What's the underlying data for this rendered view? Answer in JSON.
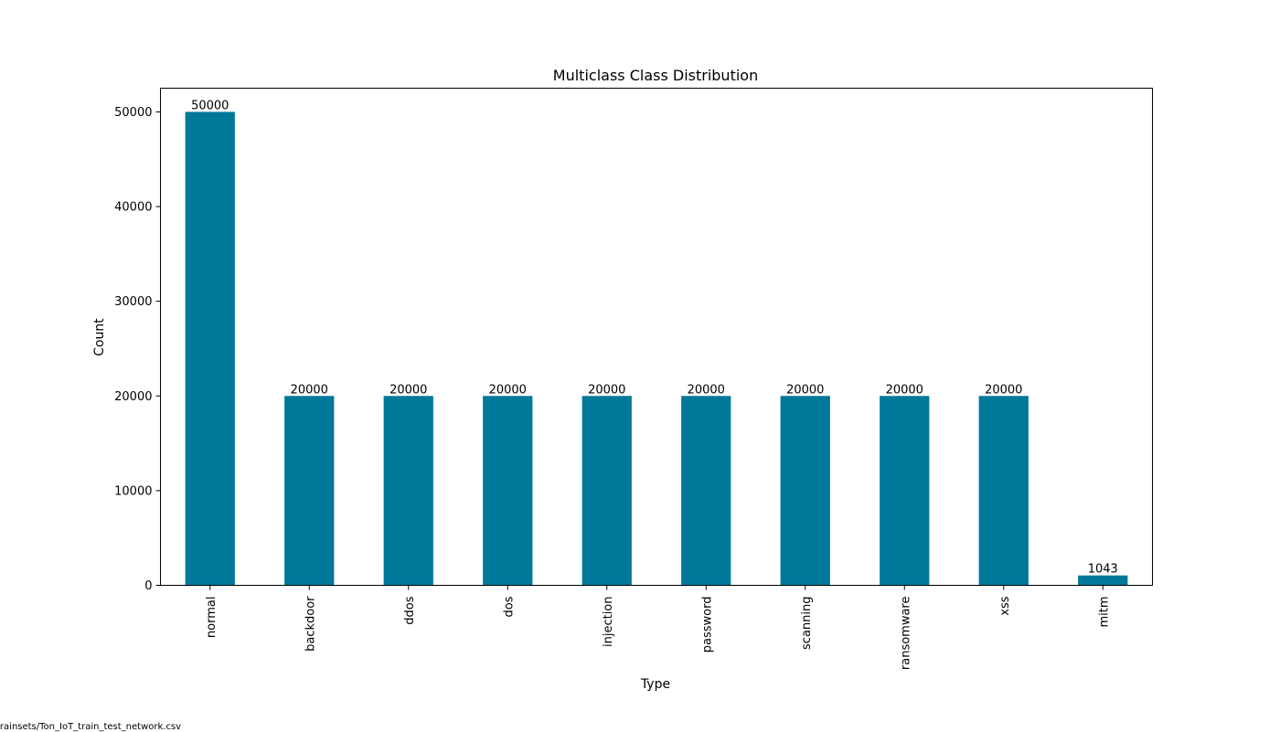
{
  "chart_data": {
    "type": "bar",
    "title": "Multiclass Class Distribution",
    "xlabel": "Type",
    "ylabel": "Count",
    "categories": [
      "normal",
      "backdoor",
      "ddos",
      "dos",
      "injection",
      "password",
      "scanning",
      "ransomware",
      "xss",
      "mitm"
    ],
    "values": [
      50000,
      20000,
      20000,
      20000,
      20000,
      20000,
      20000,
      20000,
      20000,
      1043
    ],
    "data_labels": [
      "50000",
      "20000",
      "20000",
      "20000",
      "20000",
      "20000",
      "20000",
      "20000",
      "20000",
      "1043"
    ],
    "ylim": [
      0,
      52500
    ],
    "yticks": [
      0,
      10000,
      20000,
      30000,
      40000,
      50000
    ],
    "ytick_labels": [
      "0",
      "10000",
      "20000",
      "30000",
      "40000",
      "50000"
    ],
    "bar_color": "#00789a",
    "grid": false,
    "legend": "none"
  },
  "footer": {
    "note": "trainsets/Ton_IoT_train_test_network.csv"
  }
}
